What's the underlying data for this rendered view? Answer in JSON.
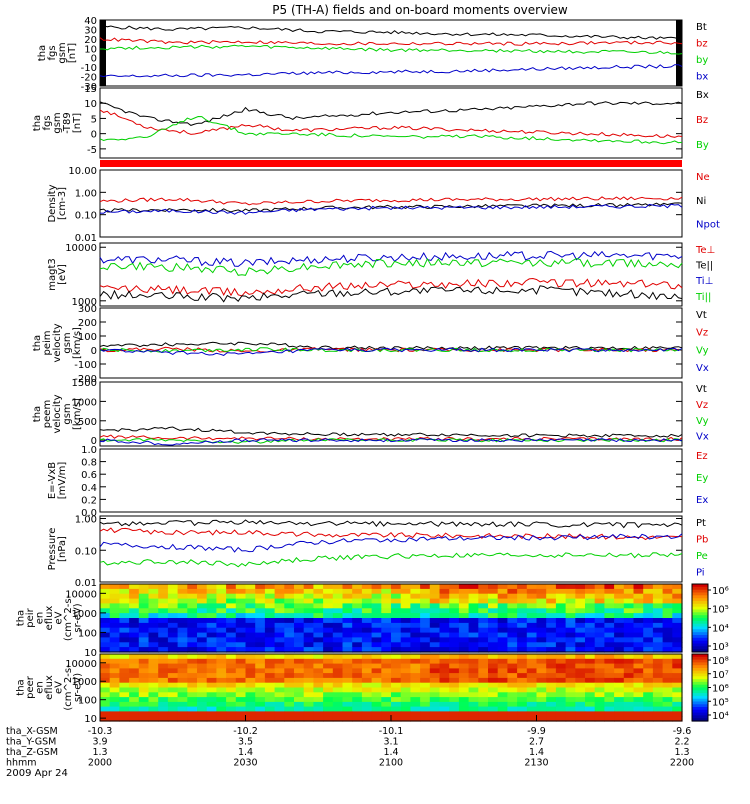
{
  "title": "P5 (TH-A) fields and on-board moments overview",
  "date": "2009 Apr 24",
  "x_axis": {
    "rows": [
      {
        "label": "tha_X-GSM",
        "values": [
          "-10.3",
          "-10.2",
          "-10.1",
          "-9.9",
          "-9.6"
        ]
      },
      {
        "label": "tha_Y-GSM",
        "values": [
          "3.9",
          "3.5",
          "3.1",
          "2.7",
          "2.2"
        ]
      },
      {
        "label": "tha_Z-GSM",
        "values": [
          "1.3",
          "1.4",
          "1.4",
          "1.4",
          "1.3"
        ]
      },
      {
        "label": "hhmm",
        "values": [
          "2000",
          "2030",
          "2100",
          "2130",
          "2200"
        ]
      }
    ],
    "time_range": [
      "2000",
      "2200"
    ]
  },
  "colors": {
    "black": "#000000",
    "red": "#e00000",
    "green": "#00d000",
    "blue": "#0000c8"
  },
  "chart_data": [
    {
      "type": "line",
      "ylabel": [
        "tha",
        "fgs",
        "gsm",
        "[nT]"
      ],
      "yticks": [
        "40",
        "30",
        "20",
        "10",
        "0",
        "-10",
        "-20",
        "-30"
      ],
      "ylim": [
        -30,
        40
      ],
      "scale": "linear",
      "side_bars": true,
      "series": [
        {
          "name": "Bt",
          "color": "black",
          "x": [
            "2000",
            "2015",
            "2030",
            "2045",
            "2100",
            "2115",
            "2130",
            "2145",
            "2200"
          ],
          "values": [
            33,
            30,
            32,
            28,
            27,
            25,
            24,
            22,
            20
          ]
        },
        {
          "name": "bz",
          "color": "red",
          "x": [
            "2000",
            "2015",
            "2030",
            "2045",
            "2100",
            "2115",
            "2130",
            "2145",
            "2200"
          ],
          "values": [
            20,
            16,
            17,
            15,
            15,
            15,
            15,
            16,
            16
          ]
        },
        {
          "name": "by",
          "color": "green",
          "x": [
            "2000",
            "2015",
            "2030",
            "2045",
            "2100",
            "2115",
            "2130",
            "2145",
            "2200"
          ],
          "values": [
            10,
            11,
            12,
            10,
            8,
            8,
            7,
            6,
            5
          ]
        },
        {
          "name": "bx",
          "color": "blue",
          "x": [
            "2000",
            "2015",
            "2030",
            "2045",
            "2100",
            "2115",
            "2130",
            "2145",
            "2200"
          ],
          "values": [
            -20,
            -19,
            -18,
            -16,
            -15,
            -14,
            -12,
            -10,
            -9
          ]
        }
      ]
    },
    {
      "type": "line",
      "ylabel": [
        "tha",
        "fgs",
        "gsm",
        "-T89",
        "[nT]"
      ],
      "yticks": [
        "15",
        "10",
        "5",
        "0",
        "-5"
      ],
      "ylim": [
        -8,
        15
      ],
      "scale": "linear",
      "series": [
        {
          "name": "Bx",
          "color": "black",
          "x": [
            "2000",
            "2010",
            "2020",
            "2030",
            "2040",
            "2100",
            "2120",
            "2140",
            "2200"
          ],
          "values": [
            10,
            5,
            3,
            8,
            5,
            7,
            8,
            10,
            10
          ]
        },
        {
          "name": "Bz",
          "color": "red",
          "x": [
            "2000",
            "2010",
            "2020",
            "2030",
            "2040",
            "2100",
            "2120",
            "2140",
            "2200"
          ],
          "values": [
            8,
            2,
            0,
            3,
            1,
            2,
            1,
            0,
            -1
          ]
        },
        {
          "name": "By",
          "color": "green",
          "x": [
            "2000",
            "2010",
            "2020",
            "2030",
            "2040",
            "2100",
            "2120",
            "2140",
            "2200"
          ],
          "values": [
            -2,
            -1,
            6,
            0,
            0,
            -1,
            -1,
            -2,
            -3
          ]
        }
      ]
    },
    {
      "type": "line",
      "ylabel": [
        "Density",
        "[cm-3]"
      ],
      "yticks": [
        "10.00",
        "1.00",
        "0.10",
        "0.01"
      ],
      "ylim": [
        0.01,
        10
      ],
      "scale": "log",
      "series": [
        {
          "name": "Ne",
          "color": "red",
          "x": [
            "2000",
            "2015",
            "2030",
            "2045",
            "2100",
            "2130",
            "2200"
          ],
          "values": [
            0.4,
            0.5,
            0.3,
            0.4,
            0.45,
            0.5,
            0.55
          ]
        },
        {
          "name": "Ni",
          "color": "black",
          "x": [
            "2000",
            "2015",
            "2030",
            "2045",
            "2100",
            "2130",
            "2200"
          ],
          "values": [
            0.15,
            0.17,
            0.15,
            0.2,
            0.22,
            0.25,
            0.28
          ]
        },
        {
          "name": "Npot",
          "color": "blue",
          "x": [
            "2000",
            "2015",
            "2030",
            "2045",
            "2100",
            "2130",
            "2200"
          ],
          "values": [
            0.13,
            0.15,
            0.12,
            0.18,
            0.2,
            0.22,
            0.25
          ]
        }
      ]
    },
    {
      "type": "line",
      "ylabel": [
        "magt3",
        "[eV]"
      ],
      "yticks": [
        "10000",
        "1000"
      ],
      "ylim": [
        800,
        12000
      ],
      "scale": "log",
      "series": [
        {
          "name": "Te⊥",
          "color": "red",
          "x": [
            "2000",
            "2015",
            "2030",
            "2045",
            "2100",
            "2130",
            "2200"
          ],
          "values": [
            1700,
            1600,
            1400,
            1800,
            2000,
            2200,
            2000
          ]
        },
        {
          "name": "Te||",
          "color": "black",
          "x": [
            "2000",
            "2015",
            "2030",
            "2045",
            "2100",
            "2130",
            "2200"
          ],
          "values": [
            1300,
            1200,
            1100,
            1400,
            1500,
            1600,
            1200
          ]
        },
        {
          "name": "Ti⊥",
          "color": "blue",
          "x": [
            "2000",
            "2015",
            "2030",
            "2045",
            "2100",
            "2130",
            "2200"
          ],
          "values": [
            6000,
            5800,
            5000,
            6000,
            6500,
            7000,
            7000
          ]
        },
        {
          "name": "Ti||",
          "color": "green",
          "x": [
            "2000",
            "2015",
            "2030",
            "2045",
            "2100",
            "2130",
            "2200"
          ],
          "values": [
            4500,
            4200,
            3500,
            4500,
            5000,
            5200,
            5000
          ]
        }
      ]
    },
    {
      "type": "line",
      "ylabel": [
        "tha",
        "peim",
        "velocity",
        "gsm",
        "[km/s]"
      ],
      "yticks": [
        "300",
        "200",
        "100",
        "0",
        "-100",
        "-200"
      ],
      "ylim": [
        -200,
        300
      ],
      "scale": "linear",
      "series": [
        {
          "name": "Vt",
          "color": "black",
          "x": [
            "2000",
            "2015",
            "2030",
            "2045",
            "2100",
            "2130",
            "2200"
          ],
          "values": [
            30,
            40,
            50,
            20,
            15,
            15,
            15
          ]
        },
        {
          "name": "Vz",
          "color": "red",
          "x": [
            "2000",
            "2015",
            "2030",
            "2045",
            "2100",
            "2130",
            "2200"
          ],
          "values": [
            0,
            10,
            -10,
            5,
            0,
            0,
            0
          ]
        },
        {
          "name": "Vy",
          "color": "green",
          "x": [
            "2000",
            "2015",
            "2030",
            "2045",
            "2100",
            "2130",
            "2200"
          ],
          "values": [
            0,
            -5,
            5,
            0,
            0,
            0,
            0
          ]
        },
        {
          "name": "Vx",
          "color": "blue",
          "x": [
            "2000",
            "2015",
            "2030",
            "2045",
            "2100",
            "2130",
            "2200"
          ],
          "values": [
            0,
            -20,
            -30,
            0,
            0,
            0,
            0
          ]
        }
      ]
    },
    {
      "type": "line",
      "ylabel": [
        "tha",
        "peem",
        "velocity",
        "gsm",
        "[km/s]"
      ],
      "yticks": [
        "1500",
        "1000",
        "500",
        "0"
      ],
      "ylim": [
        -150,
        1500
      ],
      "scale": "linear",
      "series": [
        {
          "name": "Vt",
          "color": "black",
          "x": [
            "2000",
            "2015",
            "2030",
            "2045",
            "2100",
            "2130",
            "2200"
          ],
          "values": [
            250,
            300,
            200,
            150,
            150,
            120,
            120
          ]
        },
        {
          "name": "Vz",
          "color": "red",
          "x": [
            "2000",
            "2015",
            "2030",
            "2045",
            "2100",
            "2130",
            "2200"
          ],
          "values": [
            100,
            50,
            50,
            30,
            30,
            30,
            30
          ]
        },
        {
          "name": "Vy",
          "color": "green",
          "x": [
            "2000",
            "2015",
            "2030",
            "2045",
            "2100",
            "2130",
            "2200"
          ],
          "values": [
            0,
            0,
            -50,
            0,
            0,
            0,
            0
          ]
        },
        {
          "name": "Vx",
          "color": "blue",
          "x": [
            "2000",
            "2015",
            "2030",
            "2045",
            "2100",
            "2130",
            "2200"
          ],
          "values": [
            0,
            -100,
            0,
            0,
            0,
            0,
            0
          ]
        }
      ]
    },
    {
      "type": "line",
      "ylabel": [
        "E=-VxB",
        "[mV/m]"
      ],
      "yticks": [
        "1.0",
        "0.8",
        "0.6",
        "0.4",
        "0.2",
        "0.0"
      ],
      "ylim": [
        0,
        1
      ],
      "scale": "linear",
      "series": [
        {
          "name": "Ez",
          "color": "red",
          "x": [],
          "values": []
        },
        {
          "name": "Ey",
          "color": "green",
          "x": [],
          "values": []
        },
        {
          "name": "Ex",
          "color": "blue",
          "x": [],
          "values": []
        }
      ]
    },
    {
      "type": "line",
      "ylabel": [
        "Pressure",
        "[nPa]"
      ],
      "yticks": [
        "1.00",
        "0.10",
        "0.01"
      ],
      "ylim": [
        0.01,
        1.2
      ],
      "scale": "log",
      "series": [
        {
          "name": "Pt",
          "color": "black",
          "x": [
            "2000",
            "2015",
            "2030",
            "2045",
            "2100",
            "2130",
            "2200"
          ],
          "values": [
            0.7,
            0.72,
            0.75,
            0.7,
            0.68,
            0.65,
            0.6
          ]
        },
        {
          "name": "Pb",
          "color": "red",
          "x": [
            "2000",
            "2015",
            "2030",
            "2045",
            "2100",
            "2130",
            "2200"
          ],
          "values": [
            0.45,
            0.35,
            0.38,
            0.3,
            0.3,
            0.28,
            0.25
          ]
        },
        {
          "name": "Pe",
          "color": "green",
          "x": [
            "2000",
            "2015",
            "2030",
            "2045",
            "2100",
            "2130",
            "2200"
          ],
          "values": [
            0.04,
            0.045,
            0.035,
            0.055,
            0.065,
            0.07,
            0.07
          ]
        },
        {
          "name": "Pi",
          "color": "blue",
          "x": [
            "2000",
            "2015",
            "2030",
            "2045",
            "2100",
            "2130",
            "2200"
          ],
          "values": [
            0.15,
            0.13,
            0.1,
            0.18,
            0.22,
            0.25,
            0.28
          ]
        }
      ]
    },
    {
      "type": "heatmap",
      "ylabel": [
        "tha",
        "peir",
        "en",
        "eflux",
        "eV",
        "(cm^2-s-",
        "sr-eV)"
      ],
      "yticks": [
        "10000",
        "1000",
        "100",
        "10"
      ],
      "ylim": [
        10,
        30000
      ],
      "scale": "log",
      "colorbar_ticks": [
        "10⁶",
        "10⁵",
        "10⁴",
        "10³"
      ]
    },
    {
      "type": "heatmap",
      "ylabel": [
        "tha",
        "peer",
        "en",
        "eflux",
        "eV",
        "(cm^2-s-",
        "sr-eV)"
      ],
      "yticks": [
        "10000",
        "1000",
        "100",
        "10"
      ],
      "ylim": [
        7,
        30000
      ],
      "scale": "log",
      "colorbar_ticks": [
        "10⁸",
        "10⁷",
        "10⁶",
        "10⁵",
        "10⁴"
      ]
    }
  ]
}
